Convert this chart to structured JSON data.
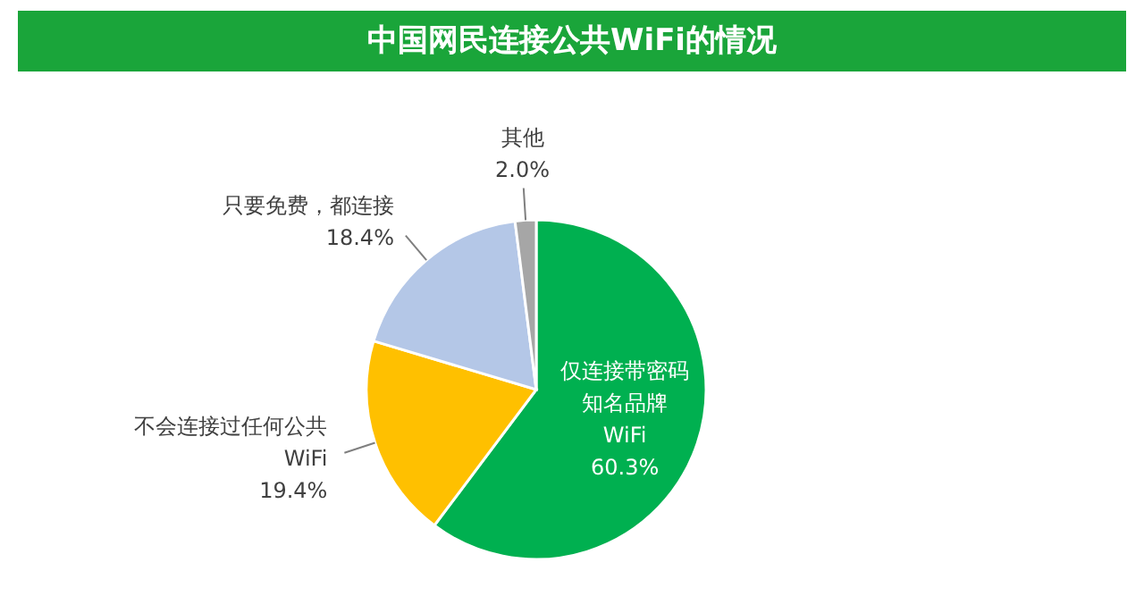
{
  "chart_data": {
    "type": "pie",
    "title": "中国网民连接公共WiFi的情况",
    "categories": [
      "仅连接带密码知名品牌WiFi",
      "不会连接过任何公共WiFi",
      "只要免费，都连接",
      "其他"
    ],
    "values": [
      60.3,
      19.4,
      18.4,
      2.0
    ],
    "colors": [
      "#00b050",
      "#ffc000",
      "#b4c7e7",
      "#a6a6a6"
    ],
    "value_labels": [
      "60.3%",
      "19.4%",
      "18.4%",
      "2.0%"
    ]
  }
}
